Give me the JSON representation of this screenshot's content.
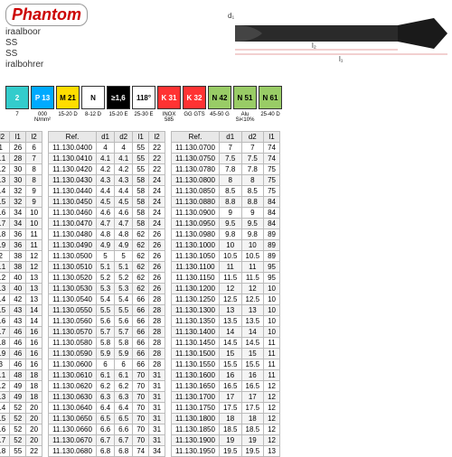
{
  "brand": "Phantom",
  "desc": [
    "iraalboor",
    "SS",
    "SS",
    "iralbohrer"
  ],
  "drill_labels": {
    "d1": "d₁",
    "l1": "l₁",
    "l2": "l₂"
  },
  "badges": [
    {
      "t": "2",
      "bg": "#3cc",
      "c": "#fff"
    },
    {
      "t": "P 13",
      "bg": "#0af",
      "c": "#fff"
    },
    {
      "t": "M 21",
      "bg": "#fd0",
      "c": "#000"
    },
    {
      "t": "N",
      "bg": "#fff",
      "c": "#000"
    },
    {
      "t": "≥1,6",
      "bg": "#000",
      "c": "#fff"
    },
    {
      "t": "118°",
      "bg": "#fff",
      "c": "#000"
    }
  ],
  "badges2": [
    {
      "t": "K 31",
      "bg": "#f33",
      "c": "#fff"
    },
    {
      "t": "K 32",
      "bg": "#f33",
      "c": "#fff"
    },
    {
      "t": "N 42",
      "bg": "#9c6",
      "c": "#000"
    },
    {
      "t": "N 51",
      "bg": "#9c6",
      "c": "#000"
    },
    {
      "t": "N 61",
      "bg": "#9c6",
      "c": "#000"
    }
  ],
  "subs": [
    "7",
    "000 N/mm²",
    "15-20 D",
    "8-12 D",
    "15-20 E",
    "25-30 E",
    "INOX 585",
    "GG GTS",
    "45-50 G",
    "Alu Si<10%",
    "25-40 D",
    "Cu",
    "22-28 D",
    "PVC"
  ],
  "cols1": [
    "d1",
    "d2",
    "l1",
    "l2"
  ],
  "cols2": [
    "Ref.",
    "d1",
    "d2",
    "l1",
    "l2"
  ],
  "t1": [
    [
      "0",
      "1",
      "1",
      "26",
      "6"
    ],
    [
      "1",
      "1.1",
      "1.1",
      "28",
      "7"
    ],
    [
      "2",
      "1.2",
      "1.2",
      "30",
      "8"
    ],
    [
      "3",
      "1.3",
      "1.3",
      "30",
      "8"
    ],
    [
      "4",
      "1.4",
      "1.4",
      "32",
      "9"
    ],
    [
      "5",
      "1.5",
      "1.5",
      "32",
      "9"
    ],
    [
      "6",
      "1.6",
      "1.6",
      "34",
      "10"
    ],
    [
      "7",
      "1.7",
      "1.7",
      "34",
      "10"
    ],
    [
      "8",
      "1.8",
      "1.8",
      "36",
      "11"
    ],
    [
      "9",
      "1.9",
      "1.9",
      "36",
      "11"
    ],
    [
      "",
      "2",
      "2",
      "38",
      "12"
    ],
    [
      "1",
      "2.1",
      "2.1",
      "38",
      "12"
    ],
    [
      "2",
      "2.2",
      "2.2",
      "40",
      "13"
    ],
    [
      "3",
      "2.3",
      "2.3",
      "40",
      "13"
    ],
    [
      "4",
      "2.4",
      "2.4",
      "42",
      "13"
    ],
    [
      "5",
      "2.5",
      "2.5",
      "43",
      "14"
    ],
    [
      "6",
      "2.6",
      "2.6",
      "43",
      "14"
    ],
    [
      "7",
      "2.7",
      "2.7",
      "46",
      "16"
    ],
    [
      "8",
      "2.8",
      "2.8",
      "46",
      "16"
    ],
    [
      "9",
      "2.9",
      "2.9",
      "46",
      "16"
    ],
    [
      "",
      "3",
      "3",
      "46",
      "16"
    ],
    [
      "1",
      "3.1",
      "3.1",
      "48",
      "18"
    ],
    [
      "2",
      "3.2",
      "3.2",
      "49",
      "18"
    ],
    [
      "3",
      "3.3",
      "3.3",
      "49",
      "18"
    ],
    [
      "4",
      "3.4",
      "3.4",
      "52",
      "20"
    ],
    [
      "5",
      "3.5",
      "3.5",
      "52",
      "20"
    ],
    [
      "6",
      "3.6",
      "3.6",
      "52",
      "20"
    ],
    [
      "7",
      "3.7",
      "3.7",
      "52",
      "20"
    ],
    [
      "8",
      "3.8",
      "3.8",
      "55",
      "22"
    ]
  ],
  "t2": [
    [
      "11.130.0400",
      "4",
      "4",
      "55",
      "22"
    ],
    [
      "11.130.0410",
      "4.1",
      "4.1",
      "55",
      "22"
    ],
    [
      "11.130.0420",
      "4.2",
      "4.2",
      "55",
      "22"
    ],
    [
      "11.130.0430",
      "4.3",
      "4.3",
      "58",
      "24"
    ],
    [
      "11.130.0440",
      "4.4",
      "4.4",
      "58",
      "24"
    ],
    [
      "11.130.0450",
      "4.5",
      "4.5",
      "58",
      "24"
    ],
    [
      "11.130.0460",
      "4.6",
      "4.6",
      "58",
      "24"
    ],
    [
      "11.130.0470",
      "4.7",
      "4.7",
      "58",
      "24"
    ],
    [
      "11.130.0480",
      "4.8",
      "4.8",
      "62",
      "26"
    ],
    [
      "11.130.0490",
      "4.9",
      "4.9",
      "62",
      "26"
    ],
    [
      "11.130.0500",
      "5",
      "5",
      "62",
      "26"
    ],
    [
      "11.130.0510",
      "5.1",
      "5.1",
      "62",
      "26"
    ],
    [
      "11.130.0520",
      "5.2",
      "5.2",
      "62",
      "26"
    ],
    [
      "11.130.0530",
      "5.3",
      "5.3",
      "62",
      "26"
    ],
    [
      "11.130.0540",
      "5.4",
      "5.4",
      "66",
      "28"
    ],
    [
      "11.130.0550",
      "5.5",
      "5.5",
      "66",
      "28"
    ],
    [
      "11.130.0560",
      "5.6",
      "5.6",
      "66",
      "28"
    ],
    [
      "11.130.0570",
      "5.7",
      "5.7",
      "66",
      "28"
    ],
    [
      "11.130.0580",
      "5.8",
      "5.8",
      "66",
      "28"
    ],
    [
      "11.130.0590",
      "5.9",
      "5.9",
      "66",
      "28"
    ],
    [
      "11.130.0600",
      "6",
      "6",
      "66",
      "28"
    ],
    [
      "11.130.0610",
      "6.1",
      "6.1",
      "70",
      "31"
    ],
    [
      "11.130.0620",
      "6.2",
      "6.2",
      "70",
      "31"
    ],
    [
      "11.130.0630",
      "6.3",
      "6.3",
      "70",
      "31"
    ],
    [
      "11.130.0640",
      "6.4",
      "6.4",
      "70",
      "31"
    ],
    [
      "11.130.0650",
      "6.5",
      "6.5",
      "70",
      "31"
    ],
    [
      "11.130.0660",
      "6.6",
      "6.6",
      "70",
      "31"
    ],
    [
      "11.130.0670",
      "6.7",
      "6.7",
      "70",
      "31"
    ],
    [
      "11.130.0680",
      "6.8",
      "6.8",
      "74",
      "34"
    ]
  ],
  "t3": [
    [
      "11.130.0700",
      "7",
      "7",
      "74"
    ],
    [
      "11.130.0750",
      "7.5",
      "7.5",
      "74"
    ],
    [
      "11.130.0780",
      "7.8",
      "7.8",
      "75"
    ],
    [
      "11.130.0800",
      "8",
      "8",
      "75"
    ],
    [
      "11.130.0850",
      "8.5",
      "8.5",
      "75"
    ],
    [
      "11.130.0880",
      "8.8",
      "8.8",
      "84"
    ],
    [
      "11.130.0900",
      "9",
      "9",
      "84"
    ],
    [
      "11.130.0950",
      "9.5",
      "9.5",
      "84"
    ],
    [
      "11.130.0980",
      "9.8",
      "9.8",
      "89"
    ],
    [
      "11.130.1000",
      "10",
      "10",
      "89"
    ],
    [
      "11.130.1050",
      "10.5",
      "10.5",
      "89"
    ],
    [
      "11.130.1100",
      "11",
      "11",
      "95"
    ],
    [
      "11.130.1150",
      "11.5",
      "11.5",
      "95"
    ],
    [
      "11.130.1200",
      "12",
      "12",
      "10"
    ],
    [
      "11.130.1250",
      "12.5",
      "12.5",
      "10"
    ],
    [
      "11.130.1300",
      "13",
      "13",
      "10"
    ],
    [
      "11.130.1350",
      "13.5",
      "13.5",
      "10"
    ],
    [
      "11.130.1400",
      "14",
      "14",
      "10"
    ],
    [
      "11.130.1450",
      "14.5",
      "14.5",
      "11"
    ],
    [
      "11.130.1500",
      "15",
      "15",
      "11"
    ],
    [
      "11.130.1550",
      "15.5",
      "15.5",
      "11"
    ],
    [
      "11.130.1600",
      "16",
      "16",
      "11"
    ],
    [
      "11.130.1650",
      "16.5",
      "16.5",
      "12"
    ],
    [
      "11.130.1700",
      "17",
      "17",
      "12"
    ],
    [
      "11.130.1750",
      "17.5",
      "17.5",
      "12"
    ],
    [
      "11.130.1800",
      "18",
      "18",
      "12"
    ],
    [
      "11.130.1850",
      "18.5",
      "18.5",
      "12"
    ],
    [
      "11.130.1900",
      "19",
      "19",
      "12"
    ],
    [
      "11.130.1950",
      "19.5",
      "19.5",
      "13"
    ]
  ]
}
